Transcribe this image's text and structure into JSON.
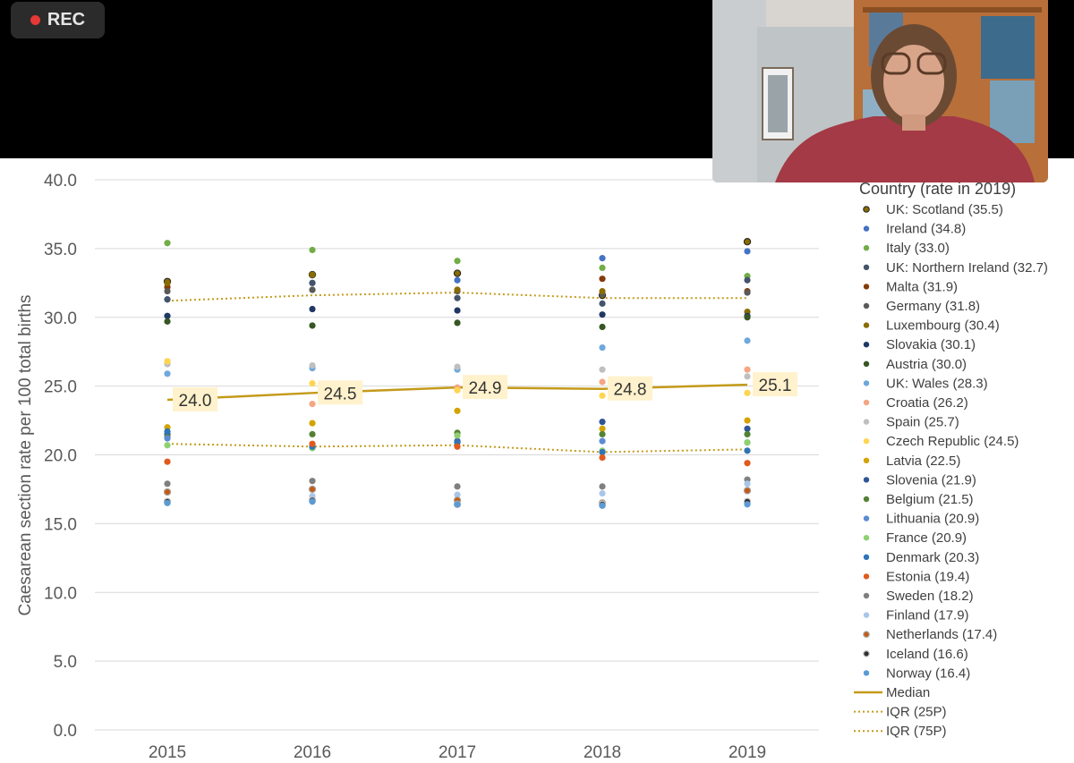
{
  "recording": {
    "label": "REC"
  },
  "chart_data": {
    "type": "scatter",
    "ylabel": "Caesarean section rate per 100 total births",
    "ylim": [
      0,
      40
    ],
    "yticks": [
      "0.0",
      "5.0",
      "10.0",
      "15.0",
      "20.0",
      "25.0",
      "30.0",
      "35.0",
      "40.0"
    ],
    "categories": [
      "2015",
      "2016",
      "2017",
      "2018",
      "2019"
    ],
    "legend_title": "Country (rate in 2019)",
    "legend_position": "right",
    "grid": true,
    "colors": {
      "median": "#c49a1a",
      "label_bg": "#fff2cc",
      "grid": "#d9d9d9"
    },
    "series": [
      {
        "name": "UK: Scotland (35.5)",
        "color": "#8a6d00",
        "ring": "#2b2b2b",
        "values": [
          32.6,
          33.1,
          33.2,
          31.6,
          35.5
        ]
      },
      {
        "name": "Ireland (34.8)",
        "color": "#4472c4",
        "values": [
          31.3,
          32.5,
          32.7,
          34.3,
          34.8
        ]
      },
      {
        "name": "Italy (33.0)",
        "color": "#70ad47",
        "values": [
          35.4,
          34.9,
          34.1,
          33.6,
          33.0
        ]
      },
      {
        "name": "UK: Northern Ireland (32.7)",
        "color": "#44546a",
        "values": [
          31.3,
          32.5,
          31.4,
          31.0,
          32.7
        ]
      },
      {
        "name": "Malta (31.9)",
        "color": "#843c0c",
        "values": [
          32.2,
          32.0,
          32.0,
          32.8,
          31.9
        ]
      },
      {
        "name": "Germany (31.8)",
        "color": "#595959",
        "values": [
          31.9,
          32.0,
          31.9,
          31.7,
          31.8
        ]
      },
      {
        "name": "Luxembourg (30.4)",
        "color": "#8a6d00",
        "values": [
          32.5,
          33.1,
          32.0,
          31.9,
          30.4
        ]
      },
      {
        "name": "Slovakia (30.1)",
        "color": "#203864",
        "values": [
          30.1,
          30.6,
          30.5,
          30.2,
          30.1
        ]
      },
      {
        "name": "Austria (30.0)",
        "color": "#375623",
        "values": [
          29.7,
          29.4,
          29.6,
          29.3,
          30.0
        ]
      },
      {
        "name": "UK: Wales (28.3)",
        "color": "#6fa8dc",
        "values": [
          25.9,
          26.3,
          26.2,
          27.8,
          28.3
        ]
      },
      {
        "name": "Croatia (26.2)",
        "color": "#f4a582",
        "values": [
          26.8,
          23.7,
          24.9,
          25.3,
          26.2
        ]
      },
      {
        "name": "Spain (25.7)",
        "color": "#bfbfbf",
        "values": [
          26.6,
          26.5,
          26.4,
          26.2,
          25.7
        ]
      },
      {
        "name": "Czech Republic (24.5)",
        "color": "#ffd54f",
        "values": [
          26.8,
          25.2,
          24.7,
          24.3,
          24.5
        ]
      },
      {
        "name": "Latvia (22.5)",
        "color": "#d4a300",
        "values": [
          22.0,
          22.3,
          23.2,
          21.9,
          22.5
        ]
      },
      {
        "name": "Slovenia (21.9)",
        "color": "#2f5597",
        "values": [
          21.5,
          20.6,
          21.0,
          22.4,
          21.9
        ]
      },
      {
        "name": "Belgium (21.5)",
        "color": "#548235",
        "values": [
          21.3,
          21.5,
          21.6,
          21.5,
          21.5
        ]
      },
      {
        "name": "Lithuania (20.9)",
        "color": "#5b8bd4",
        "values": [
          21.2,
          20.5,
          20.9,
          21.0,
          20.9
        ]
      },
      {
        "name": "France (20.9)",
        "color": "#8fd070",
        "values": [
          20.7,
          20.5,
          21.4,
          20.3,
          20.9
        ]
      },
      {
        "name": "Denmark (20.3)",
        "color": "#2e75b6",
        "values": [
          21.7,
          20.6,
          20.9,
          20.2,
          20.3
        ]
      },
      {
        "name": "Estonia (19.4)",
        "color": "#e05a1e",
        "values": [
          19.5,
          20.8,
          20.6,
          19.8,
          19.4
        ]
      },
      {
        "name": "Sweden (18.2)",
        "color": "#7f7f7f",
        "values": [
          17.9,
          18.1,
          17.7,
          17.7,
          18.2
        ]
      },
      {
        "name": "Finland (17.9)",
        "color": "#a9c6e8",
        "values": [
          16.6,
          17.0,
          17.1,
          17.2,
          17.9
        ]
      },
      {
        "name": "Netherlands (17.4)",
        "color": "#c55a11",
        "ring": "#a6a6a6",
        "values": [
          17.3,
          17.5,
          16.7,
          16.5,
          17.4
        ]
      },
      {
        "name": "Iceland (16.6)",
        "color": "#2f2f2f",
        "ring": "#c0c0c0",
        "values": [
          16.6,
          16.7,
          16.4,
          16.4,
          16.6
        ]
      },
      {
        "name": "Norway (16.4)",
        "color": "#5b9bd5",
        "values": [
          16.5,
          16.6,
          16.4,
          16.3,
          16.4
        ]
      }
    ],
    "median": {
      "name": "Median",
      "values": [
        24.0,
        24.5,
        24.9,
        24.8,
        25.1
      ],
      "labels": [
        "24.0",
        "24.5",
        "24.9",
        "24.8",
        "25.1"
      ]
    },
    "iqr25": {
      "name": "IQR (25P)",
      "values": [
        20.8,
        20.6,
        20.7,
        20.2,
        20.4
      ]
    },
    "iqr75": {
      "name": "IQR (75P)",
      "values": [
        31.2,
        31.6,
        31.8,
        31.4,
        31.4
      ]
    }
  }
}
